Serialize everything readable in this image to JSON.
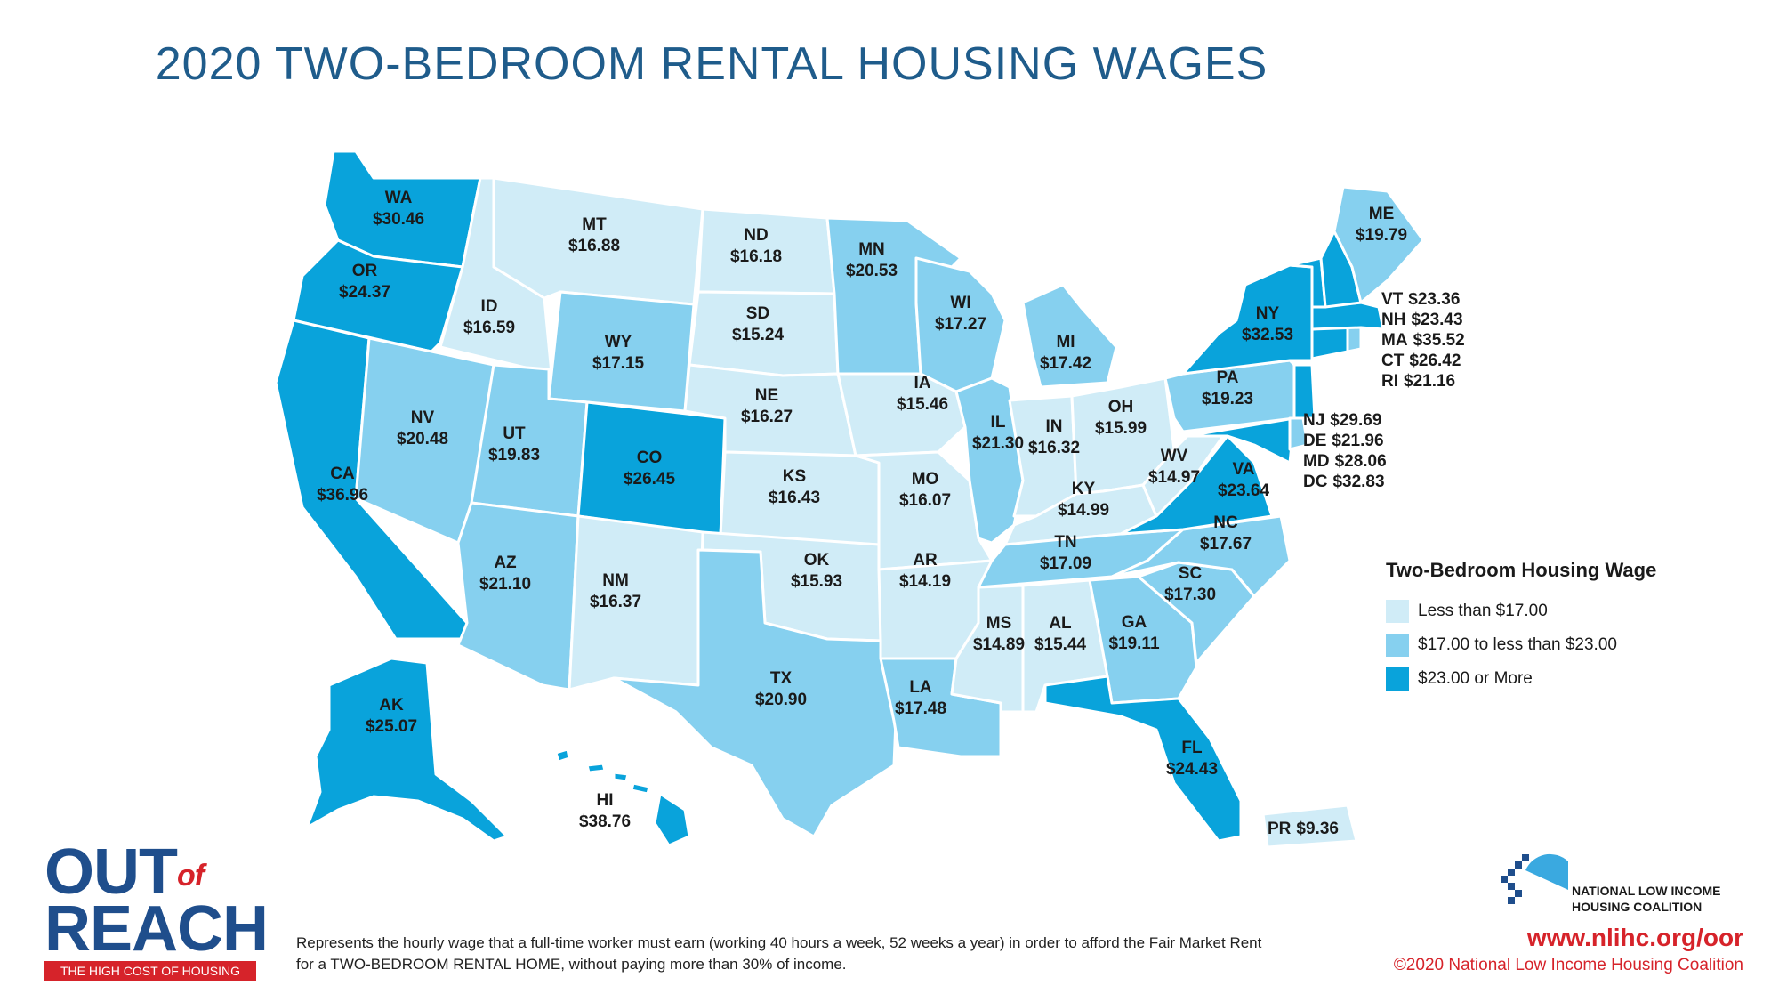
{
  "title": "2020 TWO-BEDROOM RENTAL HOUSING WAGES",
  "colors": {
    "low": "#d0ecf7",
    "mid": "#86d0ef",
    "high": "#09a3db",
    "title": "#1f5c8b",
    "brand_red": "#d6232a",
    "brand_blue": "#1f4e8c"
  },
  "legend": {
    "title": "Two-Bedroom Housing Wage",
    "items": [
      {
        "label": "Less than $17.00",
        "tier": "low"
      },
      {
        "label": "$17.00 to less than $23.00",
        "tier": "mid"
      },
      {
        "label": "$23.00 or More",
        "tier": "high"
      }
    ]
  },
  "states": [
    {
      "abbr": "WA",
      "wage": "$30.46",
      "tier": "high"
    },
    {
      "abbr": "OR",
      "wage": "$24.37",
      "tier": "high"
    },
    {
      "abbr": "CA",
      "wage": "$36.96",
      "tier": "high"
    },
    {
      "abbr": "ID",
      "wage": "$16.59",
      "tier": "low"
    },
    {
      "abbr": "NV",
      "wage": "$20.48",
      "tier": "mid"
    },
    {
      "abbr": "MT",
      "wage": "$16.88",
      "tier": "low"
    },
    {
      "abbr": "WY",
      "wage": "$17.15",
      "tier": "mid"
    },
    {
      "abbr": "UT",
      "wage": "$19.83",
      "tier": "mid"
    },
    {
      "abbr": "AZ",
      "wage": "$21.10",
      "tier": "mid"
    },
    {
      "abbr": "CO",
      "wage": "$26.45",
      "tier": "high"
    },
    {
      "abbr": "NM",
      "wage": "$16.37",
      "tier": "low"
    },
    {
      "abbr": "ND",
      "wage": "$16.18",
      "tier": "low"
    },
    {
      "abbr": "SD",
      "wage": "$15.24",
      "tier": "low"
    },
    {
      "abbr": "NE",
      "wage": "$16.27",
      "tier": "low"
    },
    {
      "abbr": "KS",
      "wage": "$16.43",
      "tier": "low"
    },
    {
      "abbr": "OK",
      "wage": "$15.93",
      "tier": "low"
    },
    {
      "abbr": "TX",
      "wage": "$20.90",
      "tier": "mid"
    },
    {
      "abbr": "MN",
      "wage": "$20.53",
      "tier": "mid"
    },
    {
      "abbr": "IA",
      "wage": "$15.46",
      "tier": "low"
    },
    {
      "abbr": "MO",
      "wage": "$16.07",
      "tier": "low"
    },
    {
      "abbr": "AR",
      "wage": "$14.19",
      "tier": "low"
    },
    {
      "abbr": "LA",
      "wage": "$17.48",
      "tier": "mid"
    },
    {
      "abbr": "WI",
      "wage": "$17.27",
      "tier": "mid"
    },
    {
      "abbr": "IL",
      "wage": "$21.30",
      "tier": "mid"
    },
    {
      "abbr": "MI",
      "wage": "$17.42",
      "tier": "mid"
    },
    {
      "abbr": "IN",
      "wage": "$16.32",
      "tier": "low"
    },
    {
      "abbr": "OH",
      "wage": "$15.99",
      "tier": "low"
    },
    {
      "abbr": "KY",
      "wage": "$14.99",
      "tier": "low"
    },
    {
      "abbr": "TN",
      "wage": "$17.09",
      "tier": "mid"
    },
    {
      "abbr": "MS",
      "wage": "$14.89",
      "tier": "low"
    },
    {
      "abbr": "AL",
      "wage": "$15.44",
      "tier": "low"
    },
    {
      "abbr": "GA",
      "wage": "$19.11",
      "tier": "mid"
    },
    {
      "abbr": "FL",
      "wage": "$24.43",
      "tier": "high"
    },
    {
      "abbr": "SC",
      "wage": "$17.30",
      "tier": "mid"
    },
    {
      "abbr": "NC",
      "wage": "$17.67",
      "tier": "mid"
    },
    {
      "abbr": "VA",
      "wage": "$23.64",
      "tier": "high"
    },
    {
      "abbr": "WV",
      "wage": "$14.97",
      "tier": "low"
    },
    {
      "abbr": "PA",
      "wage": "$19.23",
      "tier": "mid"
    },
    {
      "abbr": "NY",
      "wage": "$32.53",
      "tier": "high"
    },
    {
      "abbr": "ME",
      "wage": "$19.79",
      "tier": "mid"
    },
    {
      "abbr": "AK",
      "wage": "$25.07",
      "tier": "high"
    },
    {
      "abbr": "HI",
      "wage": "$38.76",
      "tier": "high"
    }
  ],
  "side_labels": [
    {
      "abbr": "VT",
      "wage": "$23.36",
      "tier": "high"
    },
    {
      "abbr": "NH",
      "wage": "$23.43",
      "tier": "high"
    },
    {
      "abbr": "MA",
      "wage": "$35.52",
      "tier": "high"
    },
    {
      "abbr": "CT",
      "wage": "$26.42",
      "tier": "high"
    },
    {
      "abbr": "RI",
      "wage": "$21.16",
      "tier": "mid"
    },
    {
      "abbr": "NJ",
      "wage": "$29.69",
      "tier": "high"
    },
    {
      "abbr": "DE",
      "wage": "$21.96",
      "tier": "mid"
    },
    {
      "abbr": "MD",
      "wage": "$28.06",
      "tier": "high"
    },
    {
      "abbr": "DC",
      "wage": "$32.83",
      "tier": "high"
    },
    {
      "abbr": "PR",
      "wage": "$9.36",
      "tier": "low"
    }
  ],
  "branding": {
    "oor_out": "OUT",
    "oor_of": "of",
    "oor_reach": "REACH",
    "oor_sub": "THE HIGH COST OF HOUSING",
    "org_line1": "NATIONAL LOW INCOME",
    "org_line2": "HOUSING COALITION",
    "url": "www.nlihc.org/oor",
    "copyright": "©2020 National Low Income Housing Coalition"
  },
  "footnote": "Represents the hourly wage that a full-time worker must earn (working 40 hours a week, 52 weeks a year) in order to afford the Fair Market Rent for a TWO-BEDROOM RENTAL HOME, without paying more than 30% of income."
}
